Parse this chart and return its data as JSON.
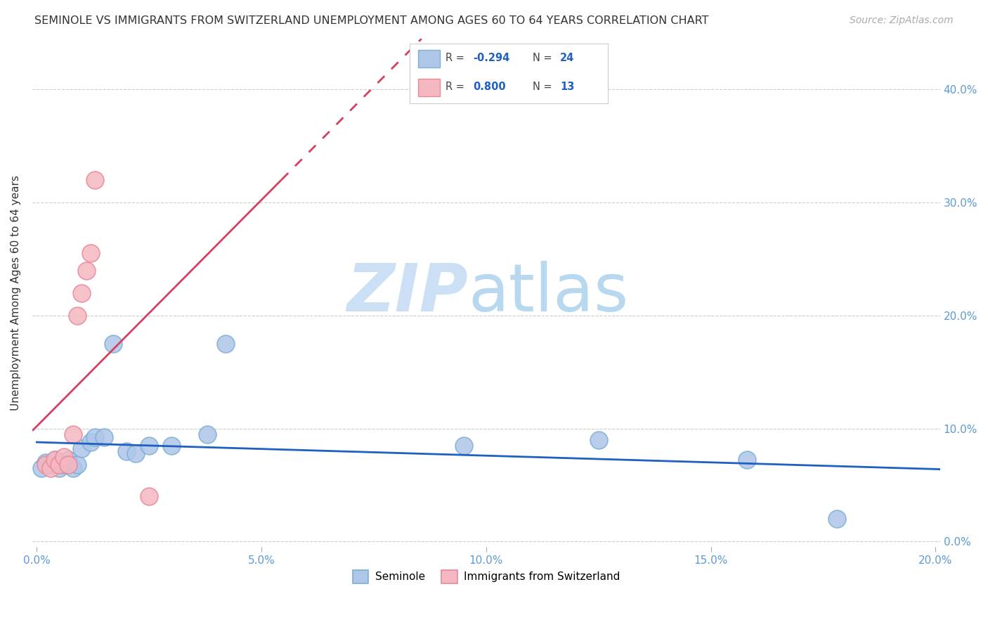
{
  "title": "SEMINOLE VS IMMIGRANTS FROM SWITZERLAND UNEMPLOYMENT AMONG AGES 60 TO 64 YEARS CORRELATION CHART",
  "source": "Source: ZipAtlas.com",
  "ylabel": "Unemployment Among Ages 60 to 64 years",
  "xlim": [
    -0.001,
    0.201
  ],
  "ylim": [
    -0.005,
    0.445
  ],
  "xticks": [
    0.0,
    0.05,
    0.1,
    0.15,
    0.2
  ],
  "xtick_labels": [
    "0.0%",
    "5.0%",
    "10.0%",
    "15.0%",
    "20.0%"
  ],
  "yticks": [
    0.0,
    0.1,
    0.2,
    0.3,
    0.4
  ],
  "ytick_labels": [
    "0.0%",
    "10.0%",
    "20.0%",
    "30.0%",
    "40.0%"
  ],
  "seminole_x": [
    0.001,
    0.002,
    0.003,
    0.004,
    0.005,
    0.006,
    0.007,
    0.008,
    0.009,
    0.01,
    0.012,
    0.013,
    0.015,
    0.017,
    0.02,
    0.022,
    0.025,
    0.03,
    0.038,
    0.042,
    0.095,
    0.125,
    0.158,
    0.178
  ],
  "seminole_y": [
    0.065,
    0.07,
    0.068,
    0.072,
    0.065,
    0.068,
    0.072,
    0.065,
    0.068,
    0.082,
    0.088,
    0.092,
    0.092,
    0.175,
    0.08,
    0.078,
    0.085,
    0.085,
    0.095,
    0.175,
    0.085,
    0.09,
    0.072,
    0.02
  ],
  "swiss_x": [
    0.002,
    0.003,
    0.004,
    0.005,
    0.006,
    0.007,
    0.008,
    0.009,
    0.01,
    0.011,
    0.012,
    0.013,
    0.025
  ],
  "swiss_y": [
    0.068,
    0.065,
    0.072,
    0.068,
    0.075,
    0.068,
    0.095,
    0.2,
    0.22,
    0.24,
    0.255,
    0.32,
    0.04
  ],
  "seminole_color": "#aec6e8",
  "swiss_color": "#f4b8c1",
  "seminole_edge": "#7bafd4",
  "swiss_edge": "#e8899a",
  "trend_blue": "#2060c0",
  "trend_pink": "#d44060",
  "r_seminole": "-0.294",
  "n_seminole": "24",
  "r_swiss": "0.800",
  "n_swiss": "13",
  "background_color": "#ffffff",
  "grid_color": "#cccccc",
  "watermark_zip_color": "#cce0f5",
  "watermark_atlas_color": "#b8d8f0"
}
